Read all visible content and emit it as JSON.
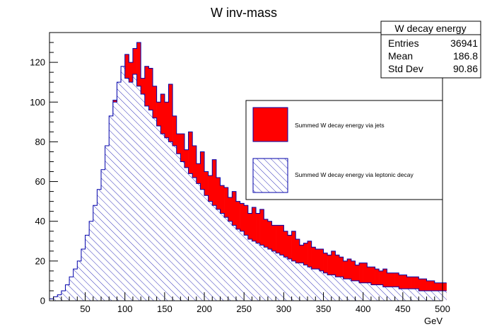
{
  "chart_data": {
    "type": "histogram",
    "title": "W inv-mass",
    "xlabel": "GeV",
    "ylabel": "",
    "xlim": [
      5,
      500
    ],
    "ylim": [
      0,
      135
    ],
    "x_ticks": [
      50,
      100,
      150,
      200,
      250,
      300,
      350,
      400,
      450,
      500
    ],
    "y_ticks": [
      0,
      20,
      40,
      60,
      80,
      100,
      120
    ],
    "grid": false,
    "legend_position": "right",
    "stats_box": {
      "title": "W decay energy",
      "rows": [
        {
          "label": "Entries",
          "value": "36941"
        },
        {
          "label": "Mean",
          "value": "186.8"
        },
        {
          "label": "Std Dev",
          "value": "90.86"
        }
      ]
    },
    "bin_start": 5,
    "bin_width": 5,
    "series": [
      {
        "name": "Summed W decay energy via jets",
        "fill": "#ff0000",
        "style": "solid",
        "values": [
          0,
          0,
          0,
          0,
          0,
          0,
          0,
          0,
          0,
          0,
          0,
          0,
          0,
          0,
          0,
          0,
          101,
          108,
          116,
          124,
          120,
          127,
          130,
          112,
          118,
          117,
          108,
          100,
          104,
          100,
          109,
          93,
          84,
          84,
          76,
          85,
          78,
          69,
          75,
          65,
          63,
          71,
          62,
          58,
          57,
          52,
          55,
          50,
          49,
          48,
          44,
          47,
          44,
          46,
          41,
          40,
          38,
          38,
          38,
          35,
          33,
          35,
          31,
          28,
          29,
          30,
          27,
          26,
          26,
          24,
          23,
          25,
          23,
          22,
          20,
          21,
          20,
          18,
          19,
          19,
          17,
          17,
          16,
          15,
          16,
          14,
          14,
          14,
          13,
          13,
          12,
          12,
          12,
          11,
          11,
          10,
          10,
          9,
          9,
          9
        ]
      },
      {
        "name": "Summed W decay energy via leptonic decay",
        "fill": "#0000aa",
        "style": "hatched",
        "values": [
          1,
          2,
          3,
          5,
          8,
          12,
          16,
          20,
          26,
          33,
          40,
          48,
          56,
          66,
          78,
          93,
          100,
          110,
          118,
          112,
          110,
          114,
          108,
          104,
          98,
          96,
          92,
          88,
          84,
          82,
          80,
          78,
          74,
          70,
          67,
          64,
          62,
          59,
          56,
          53,
          50,
          48,
          46,
          44,
          42,
          40,
          38,
          36,
          35,
          33,
          31,
          30,
          29,
          28,
          27,
          26,
          25,
          24,
          23,
          22,
          21,
          20,
          19,
          19,
          18,
          17,
          16,
          16,
          15,
          14,
          13,
          13,
          12,
          12,
          11,
          11,
          10,
          10,
          9,
          9,
          9,
          8,
          8,
          8,
          7,
          7,
          7,
          7,
          6,
          6,
          6,
          6,
          6,
          5,
          5,
          5,
          5,
          5,
          5,
          5
        ]
      }
    ]
  }
}
